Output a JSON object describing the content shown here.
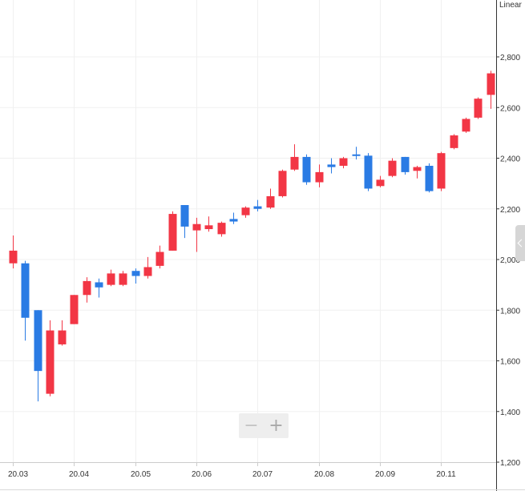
{
  "chart_data": {
    "type": "candlestick",
    "scale_label": "Linear",
    "ylim": [
      1200,
      2850
    ],
    "y_ticks": [
      1200,
      1400,
      1600,
      1800,
      2000,
      2200,
      2400,
      2600,
      2800
    ],
    "y_tick_labels": [
      "1,200",
      "1,400",
      "1,600",
      "1,800",
      "2,000",
      "2,200",
      "2,400",
      "2,600",
      "2,800"
    ],
    "x_tick_labels": [
      "20.03",
      "20.04",
      "20.05",
      "20.06",
      "20.07",
      "20.08",
      "20.09",
      "20.11"
    ],
    "x_tick_positions": [
      0,
      5,
      10,
      15,
      20,
      25,
      30,
      35
    ],
    "grid": true,
    "colors": {
      "up": "#f23645",
      "down": "#2a7be4"
    },
    "candles": [
      {
        "o": 1985,
        "c": 2035,
        "h": 2095,
        "l": 1965
      },
      {
        "o": 1985,
        "c": 1770,
        "h": 1995,
        "l": 1680
      },
      {
        "o": 1800,
        "c": 1560,
        "h": 1800,
        "l": 1440
      },
      {
        "o": 1470,
        "c": 1720,
        "h": 1760,
        "l": 1460
      },
      {
        "o": 1665,
        "c": 1720,
        "h": 1760,
        "l": 1660
      },
      {
        "o": 1745,
        "c": 1860,
        "h": 1860,
        "l": 1745
      },
      {
        "o": 1860,
        "c": 1915,
        "h": 1930,
        "l": 1830
      },
      {
        "o": 1910,
        "c": 1890,
        "h": 1925,
        "l": 1850
      },
      {
        "o": 1900,
        "c": 1945,
        "h": 1960,
        "l": 1895
      },
      {
        "o": 1900,
        "c": 1945,
        "h": 1955,
        "l": 1895
      },
      {
        "o": 1955,
        "c": 1935,
        "h": 1965,
        "l": 1905
      },
      {
        "o": 1935,
        "c": 1970,
        "h": 2010,
        "l": 1925
      },
      {
        "o": 1975,
        "c": 2030,
        "h": 2055,
        "l": 1965
      },
      {
        "o": 2035,
        "c": 2180,
        "h": 2190,
        "l": 2035
      },
      {
        "o": 2215,
        "c": 2130,
        "h": 2215,
        "l": 2085
      },
      {
        "o": 2115,
        "c": 2140,
        "h": 2165,
        "l": 2030
      },
      {
        "o": 2120,
        "c": 2135,
        "h": 2170,
        "l": 2110
      },
      {
        "o": 2100,
        "c": 2145,
        "h": 2150,
        "l": 2090
      },
      {
        "o": 2160,
        "c": 2150,
        "h": 2185,
        "l": 2140
      },
      {
        "o": 2175,
        "c": 2205,
        "h": 2210,
        "l": 2165
      },
      {
        "o": 2210,
        "c": 2200,
        "h": 2235,
        "l": 2190
      },
      {
        "o": 2205,
        "c": 2250,
        "h": 2280,
        "l": 2200
      },
      {
        "o": 2250,
        "c": 2350,
        "h": 2355,
        "l": 2245
      },
      {
        "o": 2355,
        "c": 2405,
        "h": 2455,
        "l": 2350
      },
      {
        "o": 2405,
        "c": 2305,
        "h": 2415,
        "l": 2295
      },
      {
        "o": 2305,
        "c": 2345,
        "h": 2375,
        "l": 2285
      },
      {
        "o": 2375,
        "c": 2365,
        "h": 2400,
        "l": 2340
      },
      {
        "o": 2370,
        "c": 2400,
        "h": 2405,
        "l": 2360
      },
      {
        "o": 2415,
        "c": 2410,
        "h": 2445,
        "l": 2395
      },
      {
        "o": 2410,
        "c": 2280,
        "h": 2420,
        "l": 2270
      },
      {
        "o": 2290,
        "c": 2315,
        "h": 2330,
        "l": 2285
      },
      {
        "o": 2330,
        "c": 2390,
        "h": 2400,
        "l": 2325
      },
      {
        "o": 2405,
        "c": 2345,
        "h": 2405,
        "l": 2335
      },
      {
        "o": 2350,
        "c": 2365,
        "h": 2370,
        "l": 2320
      },
      {
        "o": 2370,
        "c": 2270,
        "h": 2380,
        "l": 2265
      },
      {
        "o": 2280,
        "c": 2420,
        "h": 2425,
        "l": 2270
      },
      {
        "o": 2440,
        "c": 2490,
        "h": 2495,
        "l": 2435
      },
      {
        "o": 2505,
        "c": 2555,
        "h": 2560,
        "l": 2500
      },
      {
        "o": 2560,
        "c": 2635,
        "h": 2640,
        "l": 2555
      },
      {
        "o": 2650,
        "c": 2735,
        "h": 2745,
        "l": 2595
      }
    ]
  },
  "controls": {
    "zoom_out": "−",
    "zoom_in": "+"
  }
}
